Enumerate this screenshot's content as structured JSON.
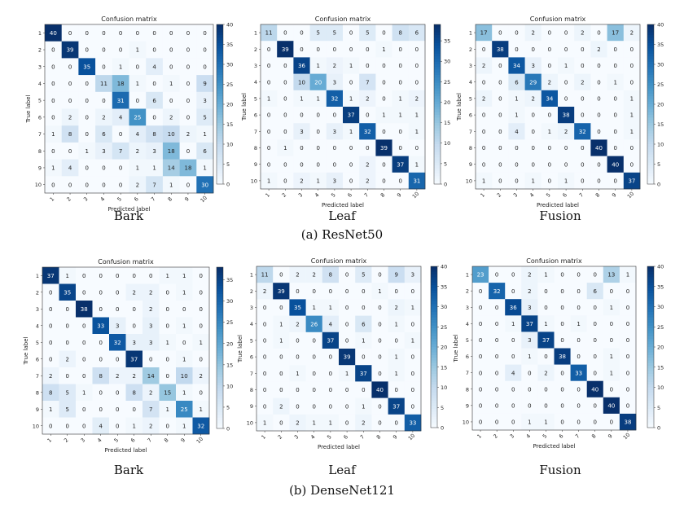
{
  "captions": {
    "resnet": "(a) ResNet50",
    "densenet": "(b) DenseNet121"
  },
  "panel_labels": [
    "Bark",
    "Leaf",
    "Fusion"
  ],
  "colors": {
    "low": "#f7fbff",
    "high": "#08306b"
  },
  "chart_data": [
    {
      "type": "heatmap",
      "model": "ResNet50",
      "modality": "Bark",
      "title": "Confusion matrix",
      "xlabel": "Predicted label",
      "ylabel": "True label",
      "labels": [
        "1",
        "2",
        "3",
        "4",
        "5",
        "6",
        "7",
        "8",
        "9",
        "10"
      ],
      "colorbar_ticks": [
        0,
        5,
        10,
        15,
        20,
        25,
        30,
        35,
        40
      ],
      "vmax": 40,
      "matrix": [
        [
          40,
          0,
          0,
          0,
          0,
          0,
          0,
          0,
          0,
          0
        ],
        [
          0,
          39,
          0,
          0,
          0,
          1,
          0,
          0,
          0,
          0
        ],
        [
          0,
          0,
          35,
          0,
          1,
          0,
          4,
          0,
          0,
          0
        ],
        [
          0,
          0,
          0,
          11,
          18,
          1,
          0,
          1,
          0,
          9
        ],
        [
          0,
          0,
          0,
          0,
          31,
          0,
          6,
          0,
          0,
          3
        ],
        [
          0,
          2,
          0,
          2,
          4,
          25,
          0,
          2,
          0,
          5
        ],
        [
          1,
          8,
          0,
          6,
          0,
          4,
          8,
          10,
          2,
          1
        ],
        [
          0,
          0,
          1,
          3,
          7,
          2,
          3,
          18,
          0,
          6
        ],
        [
          1,
          4,
          0,
          0,
          0,
          1,
          1,
          14,
          18,
          1
        ],
        [
          0,
          0,
          0,
          0,
          0,
          2,
          7,
          1,
          0,
          30
        ]
      ]
    },
    {
      "type": "heatmap",
      "model": "ResNet50",
      "modality": "Leaf",
      "title": "Confusion matrix",
      "xlabel": "Predicted label",
      "ylabel": "True label",
      "labels": [
        "1",
        "2",
        "3",
        "4",
        "5",
        "6",
        "7",
        "8",
        "9",
        "10"
      ],
      "colorbar_ticks": [
        0,
        5,
        10,
        15,
        20,
        25,
        30,
        35
      ],
      "vmax": 39,
      "matrix": [
        [
          11,
          0,
          0,
          5,
          5,
          0,
          5,
          0,
          8,
          6
        ],
        [
          0,
          39,
          0,
          0,
          0,
          0,
          0,
          1,
          0,
          0
        ],
        [
          0,
          0,
          36,
          1,
          2,
          1,
          0,
          0,
          0,
          0
        ],
        [
          0,
          0,
          10,
          20,
          3,
          0,
          7,
          0,
          0,
          0
        ],
        [
          1,
          0,
          1,
          1,
          32,
          1,
          2,
          0,
          1,
          2
        ],
        [
          0,
          0,
          0,
          0,
          0,
          37,
          0,
          1,
          1,
          1
        ],
        [
          0,
          0,
          3,
          0,
          3,
          1,
          32,
          0,
          0,
          1
        ],
        [
          0,
          1,
          0,
          0,
          0,
          0,
          0,
          39,
          0,
          0
        ],
        [
          0,
          0,
          0,
          0,
          0,
          0,
          2,
          0,
          37,
          1
        ],
        [
          1,
          0,
          2,
          1,
          3,
          0,
          2,
          0,
          0,
          31
        ]
      ]
    },
    {
      "type": "heatmap",
      "model": "ResNet50",
      "modality": "Fusion",
      "title": "Confusion matrix",
      "xlabel": "Predicted label",
      "ylabel": "True label",
      "labels": [
        "1",
        "2",
        "3",
        "4",
        "5",
        "6",
        "7",
        "8",
        "9",
        "10"
      ],
      "colorbar_ticks": [
        0,
        5,
        10,
        15,
        20,
        25,
        30,
        35,
        40
      ],
      "vmax": 40,
      "matrix": [
        [
          17,
          0,
          0,
          2,
          0,
          0,
          2,
          0,
          17,
          2
        ],
        [
          0,
          38,
          0,
          0,
          0,
          0,
          0,
          2,
          0,
          0
        ],
        [
          2,
          0,
          34,
          3,
          0,
          1,
          0,
          0,
          0,
          0
        ],
        [
          0,
          0,
          6,
          29,
          2,
          0,
          2,
          0,
          1,
          0
        ],
        [
          2,
          0,
          1,
          2,
          34,
          0,
          0,
          0,
          0,
          1
        ],
        [
          0,
          0,
          1,
          0,
          0,
          38,
          0,
          0,
          0,
          1
        ],
        [
          0,
          0,
          4,
          0,
          1,
          2,
          32,
          0,
          0,
          1
        ],
        [
          0,
          0,
          0,
          0,
          0,
          0,
          0,
          40,
          0,
          0
        ],
        [
          0,
          0,
          0,
          0,
          0,
          0,
          0,
          0,
          40,
          0
        ],
        [
          1,
          0,
          0,
          1,
          0,
          1,
          0,
          0,
          0,
          37
        ]
      ]
    },
    {
      "type": "heatmap",
      "model": "DenseNet121",
      "modality": "Bark",
      "title": "Confusion matrix",
      "xlabel": "Predicted label",
      "ylabel": "True label",
      "labels": [
        "1",
        "2",
        "3",
        "4",
        "5",
        "6",
        "7",
        "8",
        "9",
        "10"
      ],
      "colorbar_ticks": [
        0,
        5,
        10,
        15,
        20,
        25,
        30,
        35
      ],
      "vmax": 38,
      "matrix": [
        [
          37,
          1,
          0,
          0,
          0,
          0,
          0,
          1,
          1,
          0
        ],
        [
          0,
          35,
          0,
          0,
          0,
          2,
          2,
          0,
          1,
          0
        ],
        [
          0,
          0,
          38,
          0,
          0,
          0,
          2,
          0,
          0,
          0
        ],
        [
          0,
          0,
          0,
          33,
          3,
          0,
          3,
          0,
          1,
          0
        ],
        [
          0,
          0,
          0,
          0,
          32,
          3,
          3,
          1,
          0,
          1
        ],
        [
          0,
          2,
          0,
          0,
          0,
          37,
          0,
          0,
          1,
          0
        ],
        [
          2,
          0,
          0,
          8,
          2,
          2,
          14,
          0,
          10,
          2
        ],
        [
          8,
          5,
          1,
          0,
          0,
          8,
          2,
          15,
          1,
          0
        ],
        [
          1,
          5,
          0,
          0,
          0,
          0,
          7,
          1,
          25,
          1
        ],
        [
          0,
          0,
          0,
          4,
          0,
          1,
          2,
          0,
          1,
          32
        ]
      ]
    },
    {
      "type": "heatmap",
      "model": "DenseNet121",
      "modality": "Leaf",
      "title": "Confusion matrix",
      "xlabel": "Predicted label",
      "ylabel": "True label",
      "labels": [
        "1",
        "2",
        "3",
        "4",
        "5",
        "6",
        "7",
        "8",
        "9",
        "10"
      ],
      "colorbar_ticks": [
        0,
        5,
        10,
        15,
        20,
        25,
        30,
        35,
        40
      ],
      "vmax": 40,
      "matrix": [
        [
          11,
          0,
          2,
          2,
          8,
          0,
          5,
          0,
          9,
          3
        ],
        [
          2,
          39,
          0,
          0,
          0,
          0,
          0,
          1,
          0,
          0
        ],
        [
          0,
          0,
          35,
          1,
          1,
          0,
          0,
          0,
          2,
          1
        ],
        [
          0,
          1,
          2,
          26,
          4,
          0,
          6,
          0,
          1,
          0
        ],
        [
          0,
          1,
          0,
          0,
          37,
          0,
          1,
          0,
          0,
          1
        ],
        [
          0,
          0,
          0,
          0,
          0,
          39,
          0,
          0,
          1,
          0
        ],
        [
          0,
          0,
          1,
          0,
          0,
          1,
          37,
          0,
          1,
          0
        ],
        [
          0,
          0,
          0,
          0,
          0,
          0,
          0,
          40,
          0,
          0
        ],
        [
          0,
          2,
          0,
          0,
          0,
          0,
          1,
          0,
          37,
          0
        ],
        [
          1,
          0,
          2,
          1,
          1,
          0,
          2,
          0,
          0,
          33
        ]
      ]
    },
    {
      "type": "heatmap",
      "model": "DenseNet121",
      "modality": "Fusion",
      "title": "Confusion matrix",
      "xlabel": "Predicted label",
      "ylabel": "True label",
      "labels": [
        "1",
        "2",
        "3",
        "4",
        "5",
        "6",
        "7",
        "8",
        "9",
        "10"
      ],
      "colorbar_ticks": [
        0,
        5,
        10,
        15,
        20,
        25,
        30,
        35,
        40
      ],
      "vmax": 40,
      "matrix": [
        [
          23,
          0,
          0,
          2,
          1,
          0,
          0,
          0,
          13,
          1
        ],
        [
          0,
          32,
          0,
          2,
          0,
          0,
          0,
          6,
          0,
          0
        ],
        [
          0,
          0,
          36,
          3,
          0,
          0,
          0,
          0,
          1,
          0
        ],
        [
          0,
          0,
          1,
          37,
          1,
          0,
          1,
          0,
          0,
          0
        ],
        [
          0,
          0,
          0,
          3,
          37,
          0,
          0,
          0,
          0,
          0
        ],
        [
          0,
          0,
          0,
          1,
          0,
          38,
          0,
          0,
          1,
          0
        ],
        [
          0,
          0,
          4,
          0,
          2,
          0,
          33,
          0,
          1,
          0
        ],
        [
          0,
          0,
          0,
          0,
          0,
          0,
          0,
          40,
          0,
          0
        ],
        [
          0,
          0,
          0,
          0,
          0,
          0,
          0,
          0,
          40,
          0
        ],
        [
          0,
          0,
          0,
          1,
          1,
          0,
          0,
          0,
          0,
          38
        ]
      ]
    }
  ]
}
